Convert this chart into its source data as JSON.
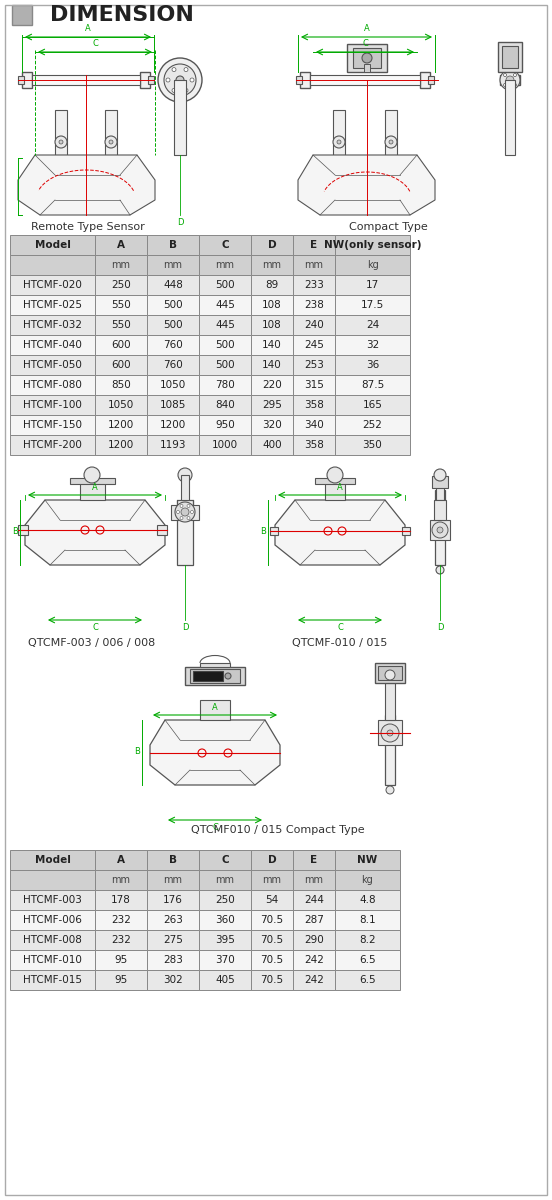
{
  "title": "DIMENSION",
  "title_square_color": "#aaaaaa",
  "bg_color": "#ffffff",
  "table1": {
    "header_row1": [
      "Model",
      "A",
      "B",
      "C",
      "D",
      "E",
      "NW(only sensor)"
    ],
    "header_row2": [
      "",
      "mm",
      "mm",
      "mm",
      "mm",
      "mm",
      "kg"
    ],
    "rows": [
      [
        "HTCMF-020",
        "250",
        "448",
        "500",
        "89",
        "233",
        "17"
      ],
      [
        "HTCMF-025",
        "550",
        "500",
        "445",
        "108",
        "238",
        "17.5"
      ],
      [
        "HTCMF-032",
        "550",
        "500",
        "445",
        "108",
        "240",
        "24"
      ],
      [
        "HTCMF-040",
        "600",
        "760",
        "500",
        "140",
        "245",
        "32"
      ],
      [
        "HTCMF-050",
        "600",
        "760",
        "500",
        "140",
        "253",
        "36"
      ],
      [
        "HTCMF-080",
        "850",
        "1050",
        "780",
        "220",
        "315",
        "87.5"
      ],
      [
        "HTCMF-100",
        "1050",
        "1085",
        "840",
        "295",
        "358",
        "165"
      ],
      [
        "HTCMF-150",
        "1200",
        "1200",
        "950",
        "320",
        "340",
        "252"
      ],
      [
        "HTCMF-200",
        "1200",
        "1193",
        "1000",
        "400",
        "358",
        "350"
      ]
    ],
    "header_bg": "#d0d0d0",
    "row_bg_odd": "#e8e8e8",
    "row_bg_even": "#f5f5f5"
  },
  "table2": {
    "header_row1": [
      "Model",
      "A",
      "B",
      "C",
      "D",
      "E",
      "NW"
    ],
    "header_row2": [
      "",
      "mm",
      "mm",
      "mm",
      "mm",
      "mm",
      "kg"
    ],
    "rows": [
      [
        "HTCMF-003",
        "178",
        "176",
        "250",
        "54",
        "244",
        "4.8"
      ],
      [
        "HTCMF-006",
        "232",
        "263",
        "360",
        "70.5",
        "287",
        "8.1"
      ],
      [
        "HTCMF-008",
        "232",
        "275",
        "395",
        "70.5",
        "290",
        "8.2"
      ],
      [
        "HTCMF-010",
        "95",
        "283",
        "370",
        "70.5",
        "242",
        "6.5"
      ],
      [
        "HTCMF-015",
        "95",
        "302",
        "405",
        "70.5",
        "242",
        "6.5"
      ]
    ],
    "header_bg": "#d0d0d0",
    "row_bg_odd": "#e8e8e8",
    "row_bg_even": "#f5f5f5"
  },
  "label_remote": "Remote Type Sensor",
  "label_compact": "Compact Type",
  "label_qt1": "QTCMF-003 / 006 / 008",
  "label_qt2": "QTCMF-010 / 015",
  "label_qt3": "QTCMF010 / 015 Compact Type",
  "drawing_line_color": "#555555",
  "dimension_line_color": "#00aa00",
  "red_line_color": "#dd0000",
  "font_size_title": 16,
  "font_size_table": 7.5,
  "font_size_label": 8
}
